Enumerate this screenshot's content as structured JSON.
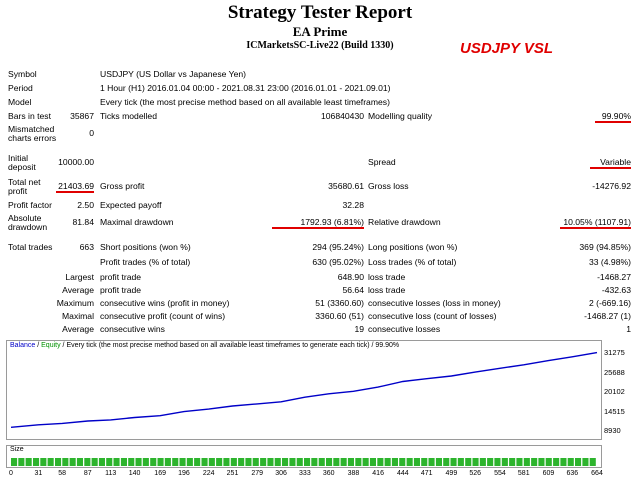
{
  "report": {
    "title": "Strategy Tester Report",
    "ea": "EA Prime",
    "server": "ICMarketsSC-Live22 (Build 1330)",
    "tag": "USDJPY VSL"
  },
  "info": {
    "symbol_label": "Symbol",
    "symbol_value": "USDJPY (US Dollar vs Japanese Yen)",
    "period_label": "Period",
    "period_value": "1 Hour (H1) 2016.01.04 00:00 - 2021.08.31 23:00 (2016.01.01 - 2021.09.01)",
    "model_label": "Model",
    "model_value": "Every tick (the most precise method based on all available least timeframes)",
    "bars_label": "Bars in test",
    "bars_value": "35867",
    "ticks_label": "Ticks modelled",
    "ticks_value": "106840430",
    "quality_label": "Modelling quality",
    "quality_value": "99.90%",
    "mismatch_label_1": "Mismatched",
    "mismatch_label_2": "charts errors",
    "mismatch_value": "0"
  },
  "stats": {
    "initial_label_1": "Initial",
    "initial_label_2": "deposit",
    "initial_value": "10000.00",
    "spread_label": "Spread",
    "spread_value": "Variable",
    "net_label_1": "Total net",
    "net_label_2": "profit",
    "net_value": "21403.69",
    "gross_profit_label": "Gross profit",
    "gross_profit_value": "35680.61",
    "gross_loss_label": "Gross loss",
    "gross_loss_value": "-14276.92",
    "pf_label": "Profit factor",
    "pf_value": "2.50",
    "ep_label": "Expected payoff",
    "ep_value": "32.28",
    "abs_dd_label_1": "Absolute",
    "abs_dd_label_2": "drawdown",
    "abs_dd_value": "81.84",
    "max_dd_label": "Maximal drawdown",
    "max_dd_value": "1792.93 (6.81%)",
    "rel_dd_label": "Relative drawdown",
    "rel_dd_value": "10.05% (1107.91)",
    "trades_label": "Total trades",
    "trades_value": "663",
    "short_label": "Short positions (won %)",
    "short_value": "294 (95.24%)",
    "long_label": "Long positions (won %)",
    "long_value": "369 (94.85%)",
    "pt_label": "Profit trades (% of total)",
    "pt_value": "630 (95.02%)",
    "lt_label": "Loss trades (% of total)",
    "lt_value": "33 (4.98%)",
    "largest_label": "Largest",
    "largest_profit_label": "profit trade",
    "largest_profit_value": "648.90",
    "largest_loss_label": "loss trade",
    "largest_loss_value": "-1468.27",
    "average_label": "Average",
    "average_profit_label": "profit trade",
    "average_profit_value": "56.64",
    "average_loss_label": "loss trade",
    "average_loss_value": "-432.63",
    "maximum_label": "Maximum",
    "max_cw_label": "consecutive wins (profit in money)",
    "max_cw_value": "51 (3360.60)",
    "max_cl_label": "consecutive losses (loss in money)",
    "max_cl_value": "2 (-669.16)",
    "maximal_label": "Maximal",
    "maximal_cp_label": "consecutive profit (count of wins)",
    "maximal_cp_value": "3360.60 (51)",
    "maximal_closs_label": "consecutive loss (count of losses)",
    "maximal_closs_value": "-1468.27 (1)",
    "avg2_label": "Average",
    "avg_cw_label": "consecutive wins",
    "avg_cw_value": "19",
    "avg_cl_label": "consecutive losses",
    "avg_cl_value": "1"
  },
  "chart_legend": {
    "balance": "Balance",
    "sep": " / ",
    "equity": "Equity",
    "rest": " / Every tick (the most precise method based on all available least timeframes to generate each tick) / 99.90%"
  },
  "size_label": "Size",
  "chart_data": {
    "type": "line",
    "title": "",
    "xlabel": "",
    "ylabel": "",
    "x_ticks": [
      0,
      31,
      58,
      87,
      113,
      140,
      169,
      196,
      224,
      251,
      279,
      306,
      333,
      360,
      388,
      416,
      444,
      471,
      499,
      526,
      554,
      581,
      609,
      636,
      664
    ],
    "y_ticks": [
      31275,
      25688,
      20102,
      14515,
      8930
    ],
    "xlim": [
      0,
      664
    ],
    "ylim": [
      8930,
      31275
    ],
    "grid": false,
    "series": [
      {
        "name": "Balance",
        "color": "#0000c8",
        "x": [
          0,
          31,
          58,
          87,
          113,
          140,
          169,
          196,
          224,
          251,
          279,
          306,
          333,
          360,
          388,
          416,
          444,
          471,
          499,
          526,
          554,
          581,
          609,
          636,
          664
        ],
        "y": [
          10000,
          10700,
          11100,
          11800,
          12100,
          12800,
          13300,
          14500,
          15200,
          16100,
          16700,
          17300,
          18600,
          19600,
          20300,
          21500,
          23100,
          23900,
          24700,
          25800,
          26900,
          27900,
          29100,
          30200,
          31400
        ]
      }
    ],
    "size_bars": {
      "color": "#2db42d",
      "count": 80
    }
  }
}
